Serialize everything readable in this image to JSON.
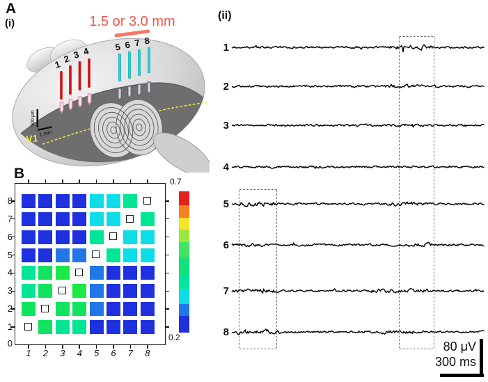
{
  "colors": {
    "accent_salmon_text": "#f2564a",
    "salmon_line": "#f4786a",
    "electrode_red": "#cf1010",
    "electrode_cyan": "#2cd3d8",
    "v1_yellow": "#ecec3a",
    "trace_black": "#0a0a0a",
    "heatmap_blue": "#1f31de",
    "heatmap_light_blue": "#2277e6",
    "heatmap_cyan": "#0cdde8",
    "heatmap_teal_green": "#00e695",
    "heatmap_green": "#0fe360",
    "heatmap_bright_green": "#1ce947"
  },
  "panelA": {
    "label": "A",
    "sub_i": "(i)",
    "sub_ii": "(ii)",
    "distance_label": "1.5 or 3.0 mm",
    "v1": "V1",
    "scale_depth": "500 μm",
    "scale_width": "1 mm",
    "electrode_numbers_red": [
      "1",
      "2",
      "3",
      "4"
    ],
    "electrode_numbers_cyan": [
      "5",
      "6",
      "7",
      "8"
    ]
  },
  "panelB": {
    "label": "B",
    "x_ticks": [
      "1",
      "2",
      "3",
      "4",
      "5",
      "6",
      "7",
      "8"
    ],
    "y_ticks": [
      "0",
      "1",
      "2",
      "3",
      "4",
      "5",
      "6",
      "7",
      "8"
    ],
    "colorbar_max": "0.7",
    "colorbar_min": "0.2",
    "colorbar_segments": [
      {
        "color": "#e62119",
        "weight": 9
      },
      {
        "color": "#f6821c",
        "weight": 8.5
      },
      {
        "color": "#f8e426",
        "weight": 8
      },
      {
        "color": "#9ae83a",
        "weight": 8
      },
      {
        "color": "#42e562",
        "weight": 10
      },
      {
        "color": "#0fe37c",
        "weight": 12
      },
      {
        "color": "#00e69e",
        "weight": 9
      },
      {
        "color": "#0cdde8",
        "weight": 10
      },
      {
        "color": "#2277e6",
        "weight": 8
      },
      {
        "color": "#1f31de",
        "weight": 11
      }
    ]
  },
  "traces": {
    "channel_labels": [
      "1",
      "2",
      "3",
      "4",
      "5",
      "6",
      "7",
      "8"
    ],
    "scalebar_voltage": "80 μV",
    "scalebar_time": "300 ms"
  },
  "chart_data": [
    {
      "type": "heatmap",
      "title": "Pairwise correlation matrix for electrodes 1-8",
      "x_categories": [
        "1",
        "2",
        "3",
        "4",
        "5",
        "6",
        "7",
        "8"
      ],
      "y_categories_bottom_to_top": [
        "1",
        "2",
        "3",
        "4",
        "5",
        "6",
        "7",
        "8"
      ],
      "x_axis_ticks_shown": [
        "1",
        "2",
        "3",
        "4",
        "5",
        "6",
        "7",
        "8"
      ],
      "y_axis_ticks_shown": [
        "0",
        "1",
        "2",
        "3",
        "4",
        "5",
        "6",
        "7",
        "8"
      ],
      "colorbar": {
        "min": 0.2,
        "max": 0.7,
        "tick_labels": [
          "0.7",
          "0.2"
        ],
        "colormap": "jet-like",
        "position": "right"
      },
      "diagonal_marker": "small open square",
      "cell_color_keys_rows_top8_to_bottom1": [
        [
          "B",
          "B",
          "B",
          "B",
          "C",
          "C",
          "T",
          "D"
        ],
        [
          "B",
          "B",
          "B",
          "B",
          "C",
          "C",
          "D",
          "T"
        ],
        [
          "B",
          "B",
          "B",
          "B",
          "T",
          "D",
          "C",
          "C"
        ],
        [
          "B",
          "B",
          "L",
          "L",
          "D",
          "T",
          "C",
          "C"
        ],
        [
          "T",
          "G",
          "Y",
          "D",
          "L",
          "B",
          "B",
          "B"
        ],
        [
          "T",
          "G",
          "D",
          "Y",
          "L",
          "B",
          "B",
          "B"
        ],
        [
          "G",
          "D",
          "G",
          "G",
          "L",
          "B",
          "B",
          "B"
        ],
        [
          "D",
          "G",
          "T",
          "T",
          "B",
          "B",
          "B",
          "B"
        ]
      ],
      "color_key_legend": {
        "B": {
          "hex": "#1f31de",
          "approx_value": 0.24
        },
        "L": {
          "hex": "#2277e6",
          "approx_value": 0.29
        },
        "C": {
          "hex": "#0cdde8",
          "approx_value": 0.38
        },
        "T": {
          "hex": "#00e695",
          "approx_value": 0.45
        },
        "G": {
          "hex": "#0fe360",
          "approx_value": 0.47
        },
        "Y": {
          "hex": "#1ce947",
          "approx_value": 0.5
        },
        "D": {
          "hex": null,
          "approx_value": null
        }
      },
      "values_rows_top8_to_bottom1": [
        [
          0.24,
          0.24,
          0.24,
          0.24,
          0.38,
          0.38,
          0.45,
          null
        ],
        [
          0.24,
          0.24,
          0.24,
          0.24,
          0.38,
          0.38,
          null,
          0.45
        ],
        [
          0.24,
          0.24,
          0.24,
          0.24,
          0.45,
          null,
          0.38,
          0.38
        ],
        [
          0.24,
          0.24,
          0.29,
          0.29,
          null,
          0.45,
          0.38,
          0.38
        ],
        [
          0.45,
          0.47,
          0.5,
          null,
          0.29,
          0.24,
          0.24,
          0.24
        ],
        [
          0.45,
          0.47,
          null,
          0.5,
          0.29,
          0.24,
          0.24,
          0.24
        ],
        [
          0.47,
          null,
          0.47,
          0.47,
          0.29,
          0.24,
          0.24,
          0.24
        ],
        [
          null,
          0.47,
          0.45,
          0.45,
          0.24,
          0.24,
          0.24,
          0.24
        ]
      ]
    },
    {
      "type": "line",
      "title": "Voltage traces from electrodes 1-8",
      "series_labels": [
        "1",
        "2",
        "3",
        "4",
        "5",
        "6",
        "7",
        "8"
      ],
      "y_scalebar": "80 μV",
      "x_scalebar": "300 ms",
      "annotations": [
        "dotted rectangle spanning traces 5-8 at left",
        "dotted rectangle spanning traces 1-8 at right"
      ]
    }
  ]
}
